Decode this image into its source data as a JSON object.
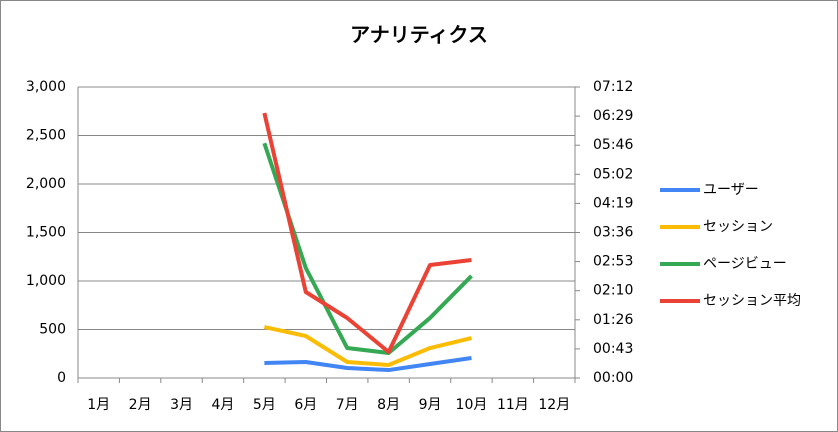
{
  "chart_data": {
    "type": "line",
    "title": "アナリティクス",
    "categories": [
      "1月",
      "2月",
      "3月",
      "4月",
      "5月",
      "6月",
      "7月",
      "8月",
      "9月",
      "10月",
      "11月",
      "12月"
    ],
    "series": [
      {
        "name": "ユーザー",
        "color": "#4285f4",
        "values": [
          null,
          null,
          null,
          null,
          155,
          165,
          103,
          82,
          144,
          206,
          null,
          null
        ]
      },
      {
        "name": "セッション",
        "color": "#fbbc04",
        "values": [
          null,
          null,
          null,
          null,
          525,
          433,
          165,
          134,
          309,
          412,
          null,
          null
        ]
      },
      {
        "name": "ページビュー",
        "color": "#34a853",
        "values": [
          null,
          null,
          null,
          null,
          2420,
          1134,
          309,
          258,
          619,
          1052,
          null,
          null
        ]
      },
      {
        "name": "セッション平均",
        "color": "#ea4335",
        "axis": "y2",
        "values": [
          null,
          null,
          null,
          null,
          23604,
          7660,
          5344,
          2316,
          10065,
          10510,
          null,
          null
        ]
      }
    ],
    "ylim": [
      0,
      3000
    ],
    "yticks": [
      0,
      500,
      {
        "value": 1000,
        "label": "1,000"
      },
      {
        "value": 1500,
        "label": "1,500"
      },
      {
        "value": 2000,
        "label": "2,000"
      },
      {
        "value": 2500,
        "label": "2,500"
      },
      {
        "value": 3000,
        "label": "3,000"
      }
    ],
    "y2lim": [
      0,
      25920
    ],
    "y2ticks": [
      {
        "value": 0,
        "label": "00:00"
      },
      {
        "value": 2592,
        "label": "00:43"
      },
      {
        "value": 5184,
        "label": "01:26"
      },
      {
        "value": 7776,
        "label": "02:10"
      },
      {
        "value": 10368,
        "label": "02:53"
      },
      {
        "value": 12960,
        "label": "03:36"
      },
      {
        "value": 15552,
        "label": "04:19"
      },
      {
        "value": 18144,
        "label": "05:02"
      },
      {
        "value": 20736,
        "label": "05:46"
      },
      {
        "value": 23328,
        "label": "06:29"
      },
      {
        "value": 25920,
        "label": "07:12"
      }
    ],
    "grid": true,
    "legend": "right"
  }
}
